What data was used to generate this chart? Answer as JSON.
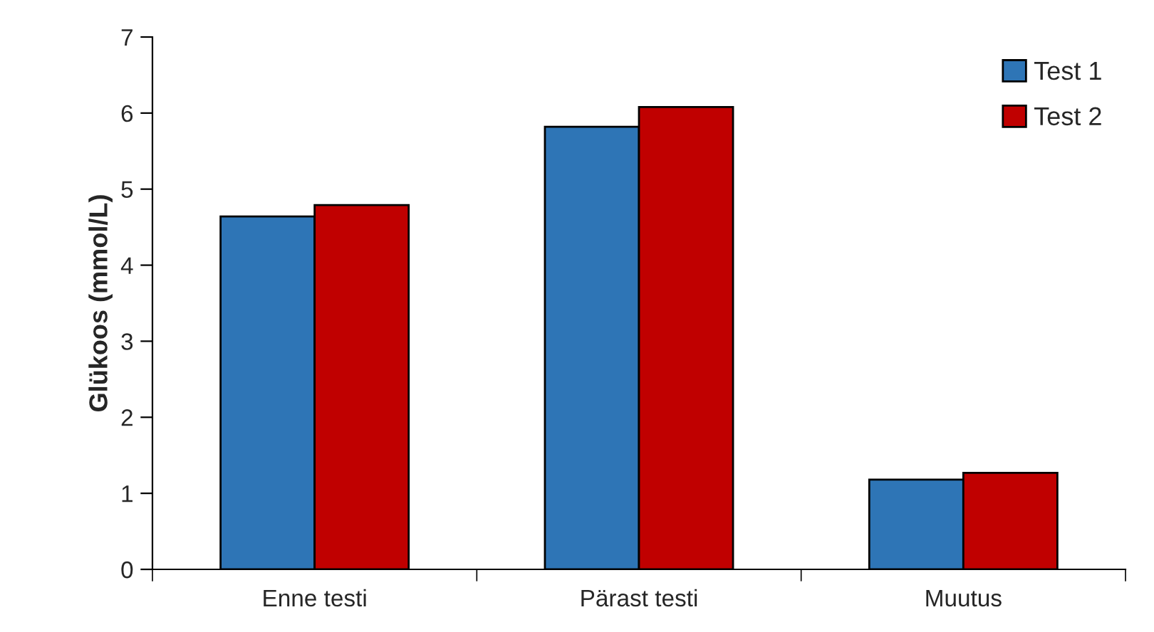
{
  "chart_data": {
    "type": "bar",
    "ylabel": "Glükoos (mmol/L)",
    "categories": [
      "Enne testi",
      "Pärast testi",
      "Muutus"
    ],
    "series": [
      {
        "name": "Test 1",
        "color": "#2e75b6",
        "values": [
          4.64,
          5.82,
          1.18
        ]
      },
      {
        "name": "Test 2",
        "color": "#c00000",
        "values": [
          4.79,
          6.08,
          1.27
        ]
      }
    ],
    "ylim": [
      0,
      7
    ],
    "yticks": [
      0,
      1,
      2,
      3,
      4,
      5,
      6,
      7
    ],
    "grid": false,
    "legend": "top right"
  }
}
